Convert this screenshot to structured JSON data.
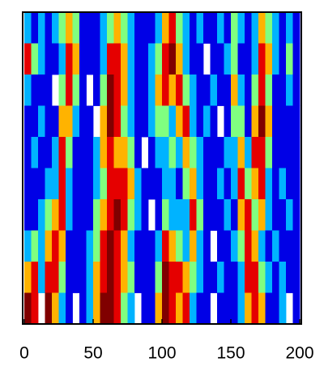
{
  "chart_data": {
    "type": "heatmap",
    "colormap": "jet",
    "zlim": [
      0,
      1
    ],
    "xlim": [
      0,
      200
    ],
    "xticks": [
      0,
      50,
      100,
      150,
      200
    ],
    "x": [
      2.5,
      7.5,
      12.5,
      17.5,
      22.5,
      27.5,
      32.5,
      37.5,
      42.5,
      47.5,
      52.5,
      57.5,
      62.5,
      67.5,
      72.5,
      77.5,
      82.5,
      87.5,
      92.5,
      97.5,
      102.5,
      107.5,
      112.5,
      117.5,
      122.5,
      127.5,
      132.5,
      137.5,
      142.5,
      147.5,
      152.5,
      157.5,
      162.5,
      167.5,
      172.5,
      177.5,
      182.5,
      187.5,
      192.5,
      197.5
    ],
    "z": [
      [
        0.3,
        0.1,
        0.3,
        0.1,
        0.3,
        0.5,
        0.7,
        0.5,
        0.1,
        0.1,
        0.1,
        0.3,
        0.5,
        0.7,
        0.5,
        0.3,
        0.1,
        0.1,
        0.1,
        0.3,
        0.7,
        0.9,
        0.5,
        0.3,
        0.1,
        0.3,
        0.1,
        0.1,
        0.3,
        0.1,
        0.5,
        0.3,
        0.1,
        0.3,
        0.7,
        0.5,
        0.3,
        0.1,
        0.3,
        0.1
      ],
      [
        0.9,
        0.5,
        0.3,
        0.1,
        0.1,
        0.3,
        0.9,
        0.7,
        0.1,
        0.1,
        0.1,
        0.3,
        0.9,
        0.9,
        0.7,
        0.3,
        0.1,
        0.1,
        0.3,
        0.5,
        0.9,
        1.0,
        0.7,
        0.3,
        0.1,
        0.1,
        null,
        0.1,
        0.1,
        0.3,
        0.5,
        0.1,
        0.1,
        0.3,
        0.9,
        0.7,
        0.3,
        0.1,
        0.5,
        0.1
      ],
      [
        0.3,
        0.1,
        0.1,
        0.1,
        null,
        0.5,
        0.9,
        0.5,
        0.1,
        null,
        0.1,
        0.5,
        1.0,
        0.9,
        0.7,
        0.3,
        0.1,
        0.1,
        0.3,
        0.7,
        0.9,
        0.7,
        0.9,
        0.5,
        0.3,
        0.1,
        0.1,
        0.3,
        0.1,
        0.1,
        0.7,
        0.3,
        0.1,
        0.5,
        0.9,
        0.5,
        0.1,
        0.1,
        0.3,
        0.1
      ],
      [
        0.1,
        0.1,
        0.3,
        0.1,
        0.1,
        0.7,
        0.7,
        0.3,
        0.1,
        0.1,
        null,
        0.7,
        1.0,
        0.9,
        0.5,
        0.3,
        0.1,
        0.1,
        0.3,
        0.5,
        0.5,
        0.3,
        0.7,
        0.9,
        0.3,
        0.1,
        0.3,
        0.1,
        null,
        0.1,
        0.5,
        0.5,
        0.1,
        0.7,
        1.0,
        0.7,
        0.1,
        0.1,
        0.1,
        0.1
      ],
      [
        0.1,
        0.3,
        0.1,
        0.1,
        0.3,
        0.9,
        0.5,
        0.1,
        0.1,
        0.1,
        0.3,
        0.7,
        0.9,
        0.7,
        0.7,
        0.5,
        0.1,
        null,
        0.1,
        0.3,
        0.3,
        0.5,
        0.3,
        0.7,
        0.5,
        0.3,
        0.1,
        0.1,
        0.1,
        0.3,
        0.3,
        0.7,
        0.3,
        0.9,
        0.9,
        0.5,
        0.1,
        0.1,
        0.1,
        0.1
      ],
      [
        0.1,
        0.1,
        0.1,
        0.3,
        0.3,
        0.9,
        0.3,
        0.1,
        0.1,
        0.1,
        0.3,
        0.5,
        0.9,
        0.9,
        0.9,
        0.7,
        0.3,
        0.1,
        0.1,
        0.1,
        0.3,
        0.3,
        0.1,
        0.5,
        0.7,
        0.3,
        0.1,
        0.1,
        0.3,
        0.1,
        0.3,
        0.9,
        0.5,
        0.7,
        0.9,
        0.3,
        0.1,
        0.3,
        0.1,
        0.1
      ],
      [
        0.1,
        0.1,
        0.3,
        0.5,
        0.7,
        0.9,
        0.3,
        0.1,
        0.1,
        0.1,
        0.5,
        0.7,
        0.9,
        1.0,
        0.9,
        0.5,
        0.3,
        0.1,
        null,
        0.1,
        0.5,
        0.3,
        0.3,
        0.3,
        0.9,
        0.5,
        0.1,
        0.1,
        0.1,
        0.3,
        0.1,
        0.7,
        0.9,
        0.5,
        0.7,
        0.3,
        0.1,
        0.1,
        0.3,
        0.1
      ],
      [
        0.3,
        0.5,
        0.3,
        0.7,
        0.9,
        0.7,
        0.1,
        0.1,
        0.1,
        0.3,
        0.5,
        0.9,
        1.0,
        0.9,
        0.7,
        0.3,
        0.1,
        0.1,
        0.1,
        0.3,
        0.9,
        0.7,
        0.5,
        0.3,
        0.7,
        0.3,
        0.1,
        null,
        0.1,
        0.1,
        0.3,
        0.5,
        0.9,
        0.7,
        0.3,
        0.1,
        0.3,
        0.1,
        0.1,
        0.1
      ],
      [
        0.7,
        0.9,
        0.3,
        0.9,
        0.9,
        0.5,
        0.1,
        0.1,
        0.1,
        0.3,
        0.7,
        0.9,
        1.0,
        0.9,
        0.7,
        0.5,
        0.1,
        0.1,
        0.1,
        0.5,
        1.0,
        0.9,
        0.9,
        0.7,
        0.5,
        0.3,
        0.1,
        0.1,
        0.3,
        0.1,
        0.1,
        0.3,
        0.9,
        0.9,
        0.5,
        0.3,
        0.1,
        0.3,
        0.1,
        0.1
      ],
      [
        1.0,
        0.9,
        null,
        1.0,
        0.7,
        0.3,
        0.1,
        null,
        0.1,
        0.3,
        0.7,
        1.0,
        1.0,
        0.9,
        0.5,
        0.3,
        null,
        0.1,
        0.1,
        0.7,
        1.0,
        0.9,
        0.7,
        0.9,
        0.3,
        0.1,
        0.1,
        null,
        0.1,
        0.1,
        0.1,
        0.3,
        0.7,
        0.9,
        0.7,
        0.1,
        0.1,
        0.3,
        null,
        0.1
      ]
    ]
  }
}
